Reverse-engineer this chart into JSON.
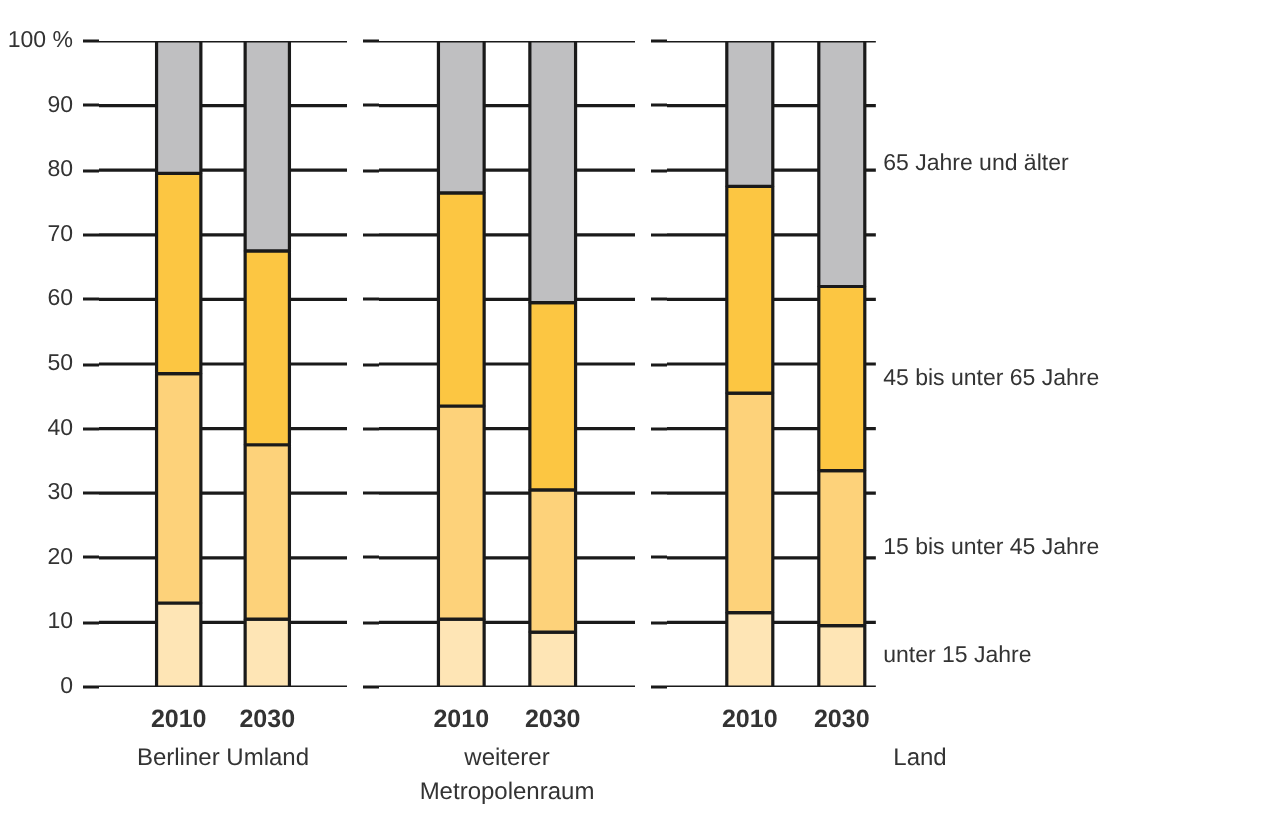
{
  "chart_data": [
    {
      "type": "bar",
      "stacked": true,
      "xlabel": "Berliner Umland",
      "categories": [
        "2010",
        "2030"
      ],
      "ylim": [
        0,
        100
      ],
      "yticks": [
        0,
        10,
        20,
        30,
        40,
        50,
        60,
        70,
        80,
        90,
        {
          "value": 100,
          "label": "100 %"
        }
      ],
      "grid": "y",
      "series": [
        {
          "color": "#fee5b5",
          "values": [
            13,
            10.5
          ]
        },
        {
          "color": "#fdd27a",
          "values": [
            35.5,
            27
          ]
        },
        {
          "color": "#fcc642",
          "values": [
            31,
            30
          ]
        },
        {
          "color": "#bfbfc1",
          "values": [
            20.5,
            32.5
          ]
        }
      ]
    },
    {
      "type": "bar",
      "stacked": true,
      "xlabel": "weiterer\nMetropolenraum",
      "categories": [
        "2010",
        "2030"
      ],
      "ylim": [
        0,
        100
      ],
      "yticks": [
        0,
        10,
        20,
        30,
        40,
        50,
        60,
        70,
        80,
        90,
        100
      ],
      "tick_labels": "x",
      "grid": "y",
      "series": [
        {
          "color": "#fee5b5",
          "values": [
            10.5,
            8.5
          ]
        },
        {
          "color": "#fdd27a",
          "values": [
            33,
            22
          ]
        },
        {
          "color": "#fcc642",
          "values": [
            33,
            29
          ]
        },
        {
          "color": "#bfbfc1",
          "values": [
            23.5,
            40.5
          ]
        }
      ]
    },
    {
      "type": "bar",
      "stacked": true,
      "xlabel": "Land",
      "categories": [
        "2010",
        "2030"
      ],
      "ylim": [
        0,
        100
      ],
      "yticks": [
        0,
        10,
        20,
        30,
        40,
        50,
        60,
        70,
        80,
        90,
        100
      ],
      "tick_labels": "x",
      "grid": "y",
      "series": [
        {
          "name": "unter 15 Jahre",
          "color": "#fee5b5",
          "values": [
            11.5,
            9.5
          ]
        },
        {
          "name": "15 bis unter 45 Jahre",
          "color": "#fdd27a",
          "values": [
            34,
            24
          ]
        },
        {
          "name": "45 bis unter 65 Jahre",
          "color": "#fcc642",
          "values": [
            32,
            28.5
          ]
        },
        {
          "name": "65 Jahre und älter",
          "color": "#bfbfc1",
          "values": [
            22.5,
            38
          ]
        }
      ]
    }
  ]
}
